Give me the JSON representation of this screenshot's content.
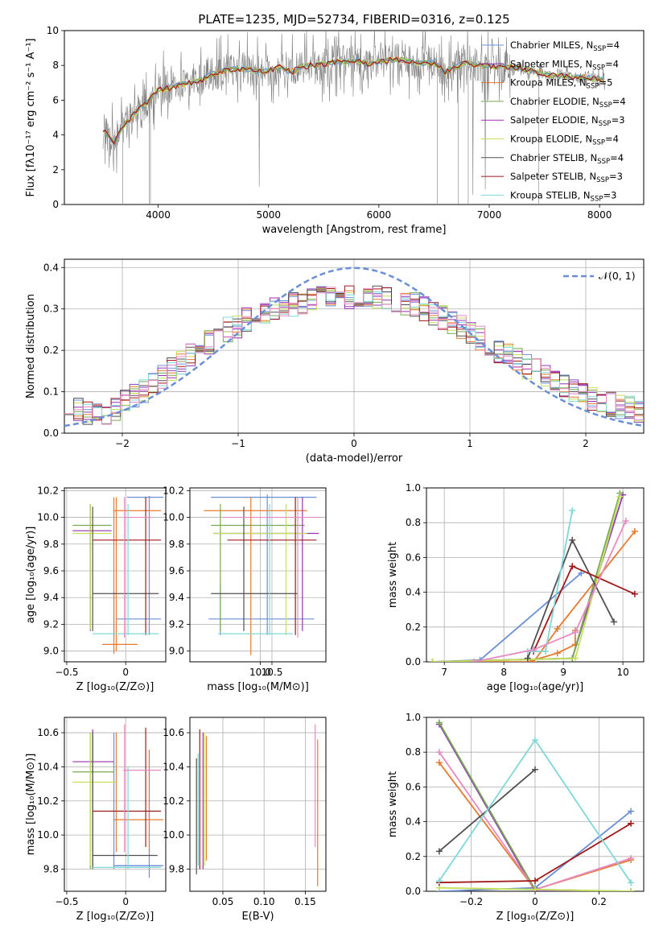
{
  "figure_title": "PLATE=1235, MJD=52734, FIBERID=0316, z=0.125",
  "colors": [
    "#6b8fd6",
    "#8e3db7",
    "#e67a2e",
    "#7aa850",
    "#9a30b0",
    "#c4e05a",
    "#505050",
    "#a01818",
    "#7fd8d8",
    "#e78ac3"
  ],
  "chart_data": [
    {
      "id": "spectrum",
      "type": "line",
      "title": "PLATE=1235, MJD=52734, FIBERID=0316, z=0.125",
      "xlabel": "wavelength [Angstrom, rest frame]",
      "ylabel": "Flux [fλ10⁻¹⁷ erg cm⁻² s⁻¹ A⁻¹]",
      "xlim": [
        3150,
        8400
      ],
      "ylim": [
        0,
        10
      ],
      "xticks": [
        4000,
        5000,
        6000,
        7000,
        8000
      ],
      "yticks": [
        0,
        2,
        4,
        6,
        8,
        10
      ],
      "legend_position": "top-right",
      "legend": [
        {
          "label": "Chabrier MILES, N",
          "sub": "SSP",
          "suffix": "=4",
          "color": "#6b8fd6"
        },
        {
          "label": "Salpeter MILES, N",
          "sub": "SSP",
          "suffix": "=4",
          "color": "#8e3db7"
        },
        {
          "label": "Kroupa MILES, N",
          "sub": "SSP",
          "suffix": "=5",
          "color": "#e67a2e"
        },
        {
          "label": "Chabrier ELODIE, N",
          "sub": "SSP",
          "suffix": "=4",
          "color": "#7aa850"
        },
        {
          "label": "Salpeter ELODIE, N",
          "sub": "SSP",
          "suffix": "=3",
          "color": "#9a30b0"
        },
        {
          "label": "Kroupa ELODIE, N",
          "sub": "SSP",
          "suffix": "=4",
          "color": "#c4e05a"
        },
        {
          "label": "Chabrier STELIB, N",
          "sub": "SSP",
          "suffix": "=4",
          "color": "#505050"
        },
        {
          "label": "Salpeter STELIB, N",
          "sub": "SSP",
          "suffix": "=3",
          "color": "#a01818"
        },
        {
          "label": "Kroupa STELIB, N",
          "sub": "SSP",
          "suffix": "=3",
          "color": "#7fd8d8"
        }
      ],
      "continuum": [
        [
          3500,
          4.3
        ],
        [
          3600,
          3.6
        ],
        [
          3700,
          4.6
        ],
        [
          3800,
          5.3
        ],
        [
          3900,
          5.9
        ],
        [
          4000,
          6.6
        ],
        [
          4100,
          6.7
        ],
        [
          4200,
          6.9
        ],
        [
          4300,
          7.0
        ],
        [
          4400,
          7.2
        ],
        [
          4500,
          7.5
        ],
        [
          4600,
          7.7
        ],
        [
          4700,
          7.8
        ],
        [
          4800,
          7.8
        ],
        [
          4900,
          7.6
        ],
        [
          5000,
          7.7
        ],
        [
          5100,
          7.9
        ],
        [
          5200,
          7.6
        ],
        [
          5300,
          7.9
        ],
        [
          5400,
          8.0
        ],
        [
          5500,
          8.1
        ],
        [
          5600,
          8.2
        ],
        [
          5700,
          8.2
        ],
        [
          5800,
          8.3
        ],
        [
          5900,
          8.1
        ],
        [
          6000,
          8.2
        ],
        [
          6100,
          8.3
        ],
        [
          6200,
          8.3
        ],
        [
          6300,
          8.2
        ],
        [
          6400,
          8.1
        ],
        [
          6500,
          8.2
        ],
        [
          6600,
          7.6
        ],
        [
          6700,
          7.9
        ],
        [
          6800,
          8.2
        ],
        [
          6900,
          8.0
        ],
        [
          7000,
          8.0
        ],
        [
          7100,
          7.9
        ],
        [
          7200,
          7.9
        ],
        [
          7300,
          7.8
        ],
        [
          7400,
          7.7
        ],
        [
          7500,
          7.5
        ],
        [
          7600,
          7.4
        ],
        [
          7700,
          7.4
        ],
        [
          7800,
          7.3
        ],
        [
          7900,
          7.3
        ],
        [
          8000,
          7.2
        ],
        [
          8050,
          7.2
        ]
      ]
    },
    {
      "id": "residual-histogram",
      "type": "line",
      "xlabel": "(data-model)/error",
      "ylabel": "Normed distribution",
      "xlim": [
        -2.5,
        2.5
      ],
      "ylim": [
        0,
        0.42
      ],
      "xticks": [
        -2,
        -1,
        0,
        1,
        2
      ],
      "yticks": [
        0.0,
        0.1,
        0.2,
        0.3,
        0.4
      ],
      "legend_position": "top-right",
      "series": [
        {
          "name": "𝒩(0, 1)",
          "type": "gaussian",
          "mean": 0,
          "sigma": 1,
          "color": "#6b8fd6"
        }
      ],
      "hist_profile": [
        0.06,
        0.055,
        0.05,
        0.045,
        0.05,
        0.06,
        0.075,
        0.09,
        0.1,
        0.115,
        0.135,
        0.155,
        0.17,
        0.19,
        0.205,
        0.22,
        0.235,
        0.25,
        0.26,
        0.275,
        0.285,
        0.295,
        0.3,
        0.305,
        0.31,
        0.315,
        0.32,
        0.325,
        0.33,
        0.33,
        0.33,
        0.33,
        0.33,
        0.33,
        0.325,
        0.32,
        0.315,
        0.31,
        0.3,
        0.29,
        0.28,
        0.27,
        0.255,
        0.24,
        0.23,
        0.215,
        0.2,
        0.19,
        0.175,
        0.16,
        0.15,
        0.14,
        0.125,
        0.115,
        0.105,
        0.095,
        0.085,
        0.075,
        0.07,
        0.065,
        0.06,
        0.055
      ]
    },
    {
      "id": "z-vs-age",
      "type": "scatter",
      "xlabel": "Z [log₁₀(Z/Z⊙)]",
      "ylabel": "age  [log₁₀(age/yr)]",
      "xlim": [
        -0.52,
        0.34
      ],
      "ylim": [
        8.92,
        10.22
      ],
      "xticks": [
        -0.5,
        0.0
      ],
      "yticks": [
        9.0,
        9.2,
        9.4,
        9.6,
        9.8,
        10.0,
        10.2
      ],
      "points": [
        {
          "x": 0.2,
          "y": 10.15,
          "ylo": 9.12,
          "yhi": 10.16,
          "xlo": 0.01,
          "xhi": 0.32,
          "color": "#6b8fd6"
        },
        {
          "x": -0.1,
          "y": 9.24,
          "ylo": 9.1,
          "yhi": 9.45,
          "xlo": -0.08,
          "xhi": 0.3,
          "color": "#6b8fd6"
        },
        {
          "x": -0.08,
          "y": 10.05,
          "ylo": 9.0,
          "yhi": 10.15,
          "xlo": -0.1,
          "xhi": 0.3,
          "color": "#e67a2e"
        },
        {
          "x": -0.1,
          "y": 9.05,
          "ylo": 8.98,
          "yhi": 10.15,
          "xlo": -0.2,
          "xhi": 0.1,
          "color": "#e67a2e"
        },
        {
          "x": -0.3,
          "y": 9.94,
          "ylo": 9.18,
          "yhi": 10.1,
          "xlo": -0.45,
          "xhi": -0.12,
          "color": "#7aa850"
        },
        {
          "x": -0.3,
          "y": 9.9,
          "ylo": 9.15,
          "yhi": 10.1,
          "xlo": -0.45,
          "xhi": -0.12,
          "color": "#9a30b0"
        },
        {
          "x": -0.3,
          "y": 9.88,
          "ylo": 9.16,
          "yhi": 10.1,
          "xlo": -0.45,
          "xhi": -0.12,
          "color": "#c4e05a"
        },
        {
          "x": -0.28,
          "y": 9.43,
          "ylo": 9.15,
          "yhi": 10.08,
          "xlo": -0.28,
          "xhi": 0.28,
          "color": "#505050"
        },
        {
          "x": 0.17,
          "y": 9.83,
          "ylo": 9.12,
          "yhi": 10.15,
          "xlo": -0.28,
          "xhi": 0.3,
          "color": "#a01818"
        },
        {
          "x": 0.02,
          "y": 9.13,
          "ylo": 9.12,
          "yhi": 10.1,
          "xlo": -0.28,
          "xhi": 0.28,
          "color": "#7fd8d8"
        },
        {
          "x": -0.01,
          "y": 10.0,
          "ylo": 9.1,
          "yhi": 10.15,
          "xlo": -0.02,
          "xhi": 0.22,
          "color": "#e78ac3"
        }
      ]
    },
    {
      "id": "mass-vs-age",
      "type": "scatter",
      "xlabel": "mass [log₁₀(M/M⊙)]",
      "ylabel": "",
      "xlim": [
        7.0,
        12.8
      ],
      "ylim": [
        8.92,
        10.22
      ],
      "xticks": [
        10.0,
        10.5
      ],
      "xticks_display": [
        "10.0",
        "10.5"
      ],
      "yticks": [
        9.0,
        9.2,
        9.4,
        9.6,
        9.8,
        10.0,
        10.2
      ],
      "points": [
        {
          "x": 10.3,
          "y": 10.15,
          "ylo": 9.12,
          "yhi": 10.17,
          "xlo": 7.9,
          "xhi": 12.4,
          "color": "#6b8fd6"
        },
        {
          "x": 8.3,
          "y": 9.24,
          "ylo": 9.12,
          "yhi": 9.5,
          "xlo": 7.8,
          "xhi": 12.3,
          "color": "#6b8fd6"
        },
        {
          "x": 9.6,
          "y": 10.05,
          "ylo": 8.97,
          "yhi": 10.15,
          "xlo": 7.6,
          "xhi": 12.0,
          "color": "#e67a2e"
        },
        {
          "x": 8.3,
          "y": 9.94,
          "ylo": 9.15,
          "yhi": 10.1,
          "xlo": 7.9,
          "xhi": 11.9,
          "color": "#7aa850"
        },
        {
          "x": 11.8,
          "y": 9.88,
          "ylo": 9.15,
          "yhi": 10.15,
          "xlo": 8.0,
          "xhi": 12.5,
          "color": "#9a30b0"
        },
        {
          "x": 11.1,
          "y": 9.88,
          "ylo": 9.12,
          "yhi": 10.1,
          "xlo": 8.0,
          "xhi": 12.0,
          "color": "#c4e05a"
        },
        {
          "x": 9.3,
          "y": 9.43,
          "ylo": 9.15,
          "yhi": 10.08,
          "xlo": 7.9,
          "xhi": 11.6,
          "color": "#505050"
        },
        {
          "x": 11.5,
          "y": 9.83,
          "ylo": 9.12,
          "yhi": 10.15,
          "xlo": 8.6,
          "xhi": 12.4,
          "color": "#a01818"
        },
        {
          "x": 10.4,
          "y": 9.13,
          "ylo": 9.12,
          "yhi": 10.1,
          "xlo": 8.2,
          "xhi": 11.4,
          "color": "#7fd8d8"
        },
        {
          "x": 11.6,
          "y": 10.0,
          "ylo": 9.1,
          "yhi": 10.15,
          "xlo": 8.4,
          "xhi": 12.6,
          "color": "#e78ac3"
        }
      ]
    },
    {
      "id": "age-vs-weight",
      "type": "line",
      "xlabel": "age  [log₁₀(age/yr)]",
      "ylabel": "mass weight",
      "xlim": [
        6.7,
        10.35
      ],
      "ylim": [
        0,
        1.0
      ],
      "xticks": [
        7,
        8,
        9,
        10
      ],
      "yticks": [
        0.0,
        0.2,
        0.4,
        0.6,
        0.8,
        1.0
      ],
      "series": [
        {
          "color": "#6b8fd6",
          "x": [
            6.8,
            7.6,
            9.3
          ],
          "y": [
            0.0,
            0.01,
            0.51
          ]
        },
        {
          "color": "#8e3db7",
          "x": [
            6.8,
            9.15,
            10.0
          ],
          "y": [
            0.0,
            0.02,
            0.96
          ]
        },
        {
          "color": "#e67a2e",
          "x": [
            6.8,
            8.5,
            8.9,
            10.2
          ],
          "y": [
            0.0,
            0.0,
            0.19,
            0.75
          ]
        },
        {
          "color": "#e67a2e",
          "x": [
            8.4,
            8.9,
            9.2,
            9.2
          ],
          "y": [
            0.0,
            0.05,
            0.1,
            0.18
          ]
        },
        {
          "color": "#7aa850",
          "x": [
            6.8,
            9.15,
            9.95
          ],
          "y": [
            0.0,
            0.02,
            0.97
          ]
        },
        {
          "color": "#c4e05a",
          "x": [
            6.8,
            9.2,
            9.95
          ],
          "y": [
            0.0,
            0.02,
            0.95
          ]
        },
        {
          "color": "#505050",
          "x": [
            8.4,
            9.15,
            9.85
          ],
          "y": [
            0.02,
            0.7,
            0.23
          ]
        },
        {
          "color": "#a01818",
          "x": [
            8.5,
            9.15,
            10.2
          ],
          "y": [
            0.06,
            0.55,
            0.39
          ]
        },
        {
          "color": "#7fd8d8",
          "x": [
            8.4,
            8.7,
            9.15
          ],
          "y": [
            0.06,
            0.06,
            0.87
          ]
        },
        {
          "color": "#e78ac3",
          "x": [
            7.5,
            8.5,
            9.2,
            10.05
          ],
          "y": [
            0.0,
            0.07,
            0.17,
            0.81
          ]
        }
      ]
    },
    {
      "id": "z-vs-mass",
      "type": "scatter",
      "xlabel": "Z [log₁₀(Z/Z⊙)]",
      "ylabel": "mass [log₁₀(M/M⊙)]",
      "xlim": [
        -0.52,
        0.34
      ],
      "ylim": [
        9.67,
        10.69
      ],
      "xticks": [
        -0.5,
        0.0
      ],
      "yticks": [
        9.8,
        10.0,
        10.2,
        10.4,
        10.6
      ],
      "points": [
        {
          "x": 0.2,
          "y": 9.82,
          "ylo": 9.75,
          "yhi": 10.5,
          "xlo": -0.08,
          "xhi": 0.32,
          "color": "#6b8fd6"
        },
        {
          "x": -0.1,
          "y": 9.82,
          "ylo": 9.8,
          "yhi": 10.6,
          "xlo": -0.1,
          "xhi": 0.3,
          "color": "#6b8fd6"
        },
        {
          "x": 0.2,
          "y": 10.09,
          "ylo": 9.9,
          "yhi": 10.5,
          "xlo": -0.1,
          "xhi": 0.32,
          "color": "#e67a2e"
        },
        {
          "x": -0.08,
          "y": 10.09,
          "ylo": 9.9,
          "yhi": 10.6,
          "xlo": -0.1,
          "xhi": 0.3,
          "color": "#e67a2e"
        },
        {
          "x": -0.3,
          "y": 10.37,
          "ylo": 9.8,
          "yhi": 10.6,
          "xlo": -0.45,
          "xhi": -0.1,
          "color": "#7aa850"
        },
        {
          "x": -0.28,
          "y": 10.43,
          "ylo": 9.82,
          "yhi": 10.62,
          "xlo": -0.45,
          "xhi": -0.1,
          "color": "#9a30b0"
        },
        {
          "x": -0.3,
          "y": 10.31,
          "ylo": 9.82,
          "yhi": 10.6,
          "xlo": -0.45,
          "xhi": -0.08,
          "color": "#c4e05a"
        },
        {
          "x": -0.28,
          "y": 9.88,
          "ylo": 9.8,
          "yhi": 10.6,
          "xlo": -0.28,
          "xhi": 0.27,
          "color": "#505050"
        },
        {
          "x": 0.17,
          "y": 10.14,
          "ylo": 9.93,
          "yhi": 10.63,
          "xlo": -0.28,
          "xhi": 0.3,
          "color": "#a01818"
        },
        {
          "x": 0.02,
          "y": 9.81,
          "ylo": 9.8,
          "yhi": 10.4,
          "xlo": -0.28,
          "xhi": 0.3,
          "color": "#7fd8d8"
        },
        {
          "x": -0.01,
          "y": 10.38,
          "ylo": 9.9,
          "yhi": 10.65,
          "xlo": -0.02,
          "xhi": 0.3,
          "color": "#e78ac3"
        }
      ]
    },
    {
      "id": "ebv-vs-mass",
      "type": "scatter",
      "xlabel": "E(B-V)",
      "ylabel": "",
      "xlim": [
        0.01,
        0.175
      ],
      "ylim": [
        9.67,
        10.69
      ],
      "xticks": [
        0.05,
        0.1,
        0.15
      ],
      "xticks_display": [
        "0.05",
        "0.10",
        "0.15"
      ],
      "yticks": [
        9.8,
        10.0,
        10.2,
        10.4,
        10.6
      ],
      "points": [
        {
          "x": 0.018,
          "y": 10.1,
          "ylo": 9.77,
          "yhi": 10.45,
          "color": "#505050"
        },
        {
          "x": 0.02,
          "y": 10.1,
          "ylo": 9.82,
          "yhi": 10.48,
          "color": "#7fd8d8"
        },
        {
          "x": 0.022,
          "y": 10.2,
          "ylo": 9.8,
          "yhi": 10.62,
          "color": "#a01818"
        },
        {
          "x": 0.026,
          "y": 10.2,
          "ylo": 9.8,
          "yhi": 10.6,
          "color": "#9a30b0"
        },
        {
          "x": 0.028,
          "y": 10.2,
          "ylo": 9.82,
          "yhi": 10.6,
          "color": "#c4e05a"
        },
        {
          "x": 0.03,
          "y": 10.2,
          "ylo": 9.85,
          "yhi": 10.58,
          "color": "#e67a2e"
        },
        {
          "x": 0.162,
          "y": 10.3,
          "ylo": 9.93,
          "yhi": 10.65,
          "color": "#e78ac3"
        },
        {
          "x": 0.165,
          "y": 10.1,
          "ylo": 9.7,
          "yhi": 10.56,
          "color": "#e67a2e"
        }
      ]
    },
    {
      "id": "z-vs-weight",
      "type": "line",
      "xlabel": "Z [log₁₀(Z/Z⊙)]",
      "ylabel": "mass weight",
      "xlim": [
        -0.34,
        0.34
      ],
      "ylim": [
        0,
        1.0
      ],
      "xticks": [
        -0.2,
        0.0,
        0.2
      ],
      "yticks": [
        0.0,
        0.2,
        0.4,
        0.6,
        0.8,
        1.0
      ],
      "series": [
        {
          "color": "#6b8fd6",
          "x": [
            -0.3,
            0.0,
            0.3
          ],
          "y": [
            0.0,
            0.02,
            0.46
          ]
        },
        {
          "color": "#8e3db7",
          "x": [
            -0.3,
            0.0,
            0.3
          ],
          "y": [
            0.96,
            0.0,
            0.0
          ]
        },
        {
          "color": "#e67a2e",
          "x": [
            -0.3,
            0.0,
            0.3
          ],
          "y": [
            0.74,
            0.01,
            0.18
          ]
        },
        {
          "color": "#e78ac3",
          "x": [
            -0.3,
            0.0,
            0.3
          ],
          "y": [
            0.8,
            0.01,
            0.19
          ]
        },
        {
          "color": "#7aa850",
          "x": [
            -0.3,
            0.0,
            0.3
          ],
          "y": [
            0.97,
            0.01,
            0.0
          ]
        },
        {
          "color": "#c4e05a",
          "x": [
            -0.3,
            0.0,
            0.3
          ],
          "y": [
            0.02,
            0.01,
            0.0
          ]
        },
        {
          "color": "#505050",
          "x": [
            -0.3,
            0.0
          ],
          "y": [
            0.23,
            0.7
          ]
        },
        {
          "color": "#a01818",
          "x": [
            -0.3,
            0.0,
            0.3
          ],
          "y": [
            0.05,
            0.06,
            0.39
          ]
        },
        {
          "color": "#7fd8d8",
          "x": [
            -0.3,
            0.0,
            0.3
          ],
          "y": [
            0.06,
            0.87,
            0.05
          ]
        }
      ]
    }
  ]
}
